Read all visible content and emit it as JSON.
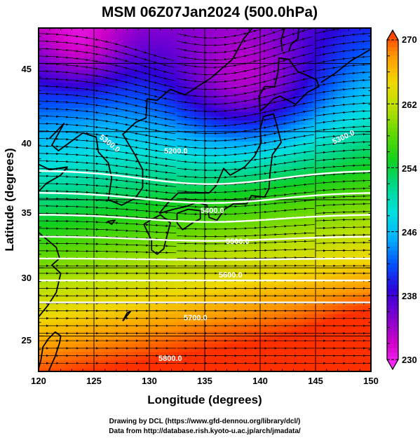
{
  "title": "MSM 06Z07Jan2024 (500.0hPa)",
  "x_axis": {
    "label": "Longitude (degrees)",
    "min": 120,
    "max": 150,
    "ticks": [
      "120",
      "125",
      "130",
      "135",
      "140",
      "145",
      "150"
    ]
  },
  "y_axis": {
    "label": "Latitude  (degrees)",
    "min": 22.4,
    "max": 47.6,
    "ticks": [
      "25",
      "30",
      "35",
      "40",
      "45"
    ]
  },
  "colorbar": {
    "min": 230,
    "max": 270,
    "ticks": [
      "230",
      "238",
      "246",
      "254",
      "262",
      "270"
    ],
    "colors": [
      "#ff30ff",
      "#d000c8",
      "#8000d0",
      "#3000d8",
      "#0050ff",
      "#00b0ff",
      "#00e0e0",
      "#00d890",
      "#10d020",
      "#60d800",
      "#b8e000",
      "#f0d800",
      "#ff9800",
      "#ff3000"
    ]
  },
  "contour_labels": [
    "5200.0",
    "5300.0",
    "5400.0",
    "5500.0",
    "5600.0",
    "5700.0",
    "5800.0"
  ],
  "credits": {
    "line1": "Drawing by DCL (https://www.gfd-dennou.org/library/dcl/)",
    "line2": "Data from http://database.rish.kyoto-u.ac.jp/arch/jmadata/"
  },
  "chart_data": {
    "type": "heatmap",
    "title": "MSM 06Z07Jan2024 (500.0hPa)",
    "xlabel": "Longitude (degrees)",
    "ylabel": "Latitude  (degrees)",
    "xlim": [
      120,
      150
    ],
    "ylim": [
      22.4,
      47.6
    ],
    "colorbar_range": [
      230,
      270
    ],
    "colorbar_ticks": [
      230,
      238,
      246,
      254,
      262,
      270
    ],
    "contour_levels": [
      5200,
      5300,
      5400,
      5500,
      5600,
      5700,
      5800
    ],
    "grid": true
  }
}
